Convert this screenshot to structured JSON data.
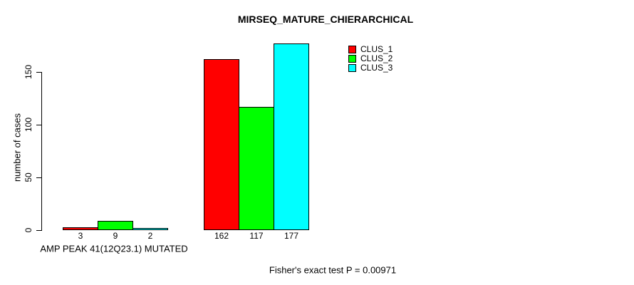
{
  "chart_data": {
    "type": "bar",
    "title": "MIRSEQ_MATURE_CHIERARCHICAL",
    "ylabel": "number of cases",
    "xlabel": "",
    "ylim": [
      0,
      150
    ],
    "yticks": [
      0,
      50,
      100,
      150
    ],
    "grid": false,
    "background": "#ffffff",
    "groups": [
      {
        "label": "AMP PEAK 41(12Q23.1) MUTATED"
      },
      {
        "label": ""
      }
    ],
    "series": [
      {
        "name": "CLUS_1",
        "color": "#ff0000",
        "values": [
          3,
          162
        ]
      },
      {
        "name": "CLUS_2",
        "color": "#00ff00",
        "values": [
          9,
          117
        ]
      },
      {
        "name": "CLUS_3",
        "color": "#00ffff",
        "values": [
          2,
          177
        ]
      }
    ],
    "bar_value_labels_shown": true,
    "legend": {
      "position": "top-right"
    },
    "footnote": "Fisher's exact test P = 0.00971"
  }
}
